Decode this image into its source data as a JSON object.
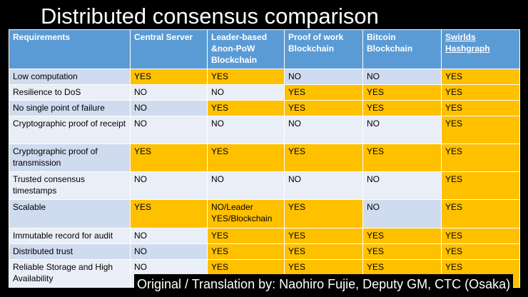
{
  "title": "Distributed consensus comparison",
  "table": {
    "headers": [
      "Requirements",
      "Central Server",
      "Leader-based &non-PoW Blockchain",
      "Proof of work Blockchain",
      "Bitcoin Blockchain",
      "Swirlds Hashgraph"
    ],
    "rows": [
      {
        "label": "Low computation",
        "values": [
          "YES",
          "YES",
          "NO",
          "NO",
          "YES"
        ]
      },
      {
        "label": "Resilience to DoS",
        "values": [
          "NO",
          "NO",
          "YES",
          "YES",
          "YES"
        ]
      },
      {
        "label": "No single point of failure",
        "values": [
          "NO",
          "YES",
          "YES",
          "YES",
          "YES"
        ]
      },
      {
        "label": "Cryptographic proof of receipt",
        "values": [
          "NO",
          "NO",
          "NO",
          "NO",
          "YES"
        ]
      },
      {
        "label": "Cryptographic proof of transmission",
        "values": [
          "YES",
          "YES",
          "YES",
          "YES",
          "YES"
        ]
      },
      {
        "label": "Trusted consensus timestamps",
        "values": [
          "NO",
          "NO",
          "NO",
          "NO",
          "YES"
        ]
      },
      {
        "label": "Scalable",
        "values": [
          "YES",
          "NO/Leader YES/Blockchain",
          "YES",
          "NO",
          "YES"
        ]
      },
      {
        "label": "Immutable record for audit",
        "values": [
          "NO",
          "YES",
          "YES",
          "YES",
          "YES"
        ]
      },
      {
        "label": "Distributed trust",
        "values": [
          "NO",
          "YES",
          "YES",
          "YES",
          "YES"
        ]
      },
      {
        "label": "Reliable Storage and High Availability",
        "values": [
          "NO",
          "YES",
          "YES",
          "YES",
          "YES"
        ]
      }
    ]
  },
  "credit": "Original / Translation by: Naohiro Fujie, Deputy GM, CTC (Osaka)",
  "colors": {
    "header": "#5b9bd5",
    "highlight": "#ffc000",
    "row_dark": "#cfdbee",
    "row_light": "#e9eef7"
  }
}
